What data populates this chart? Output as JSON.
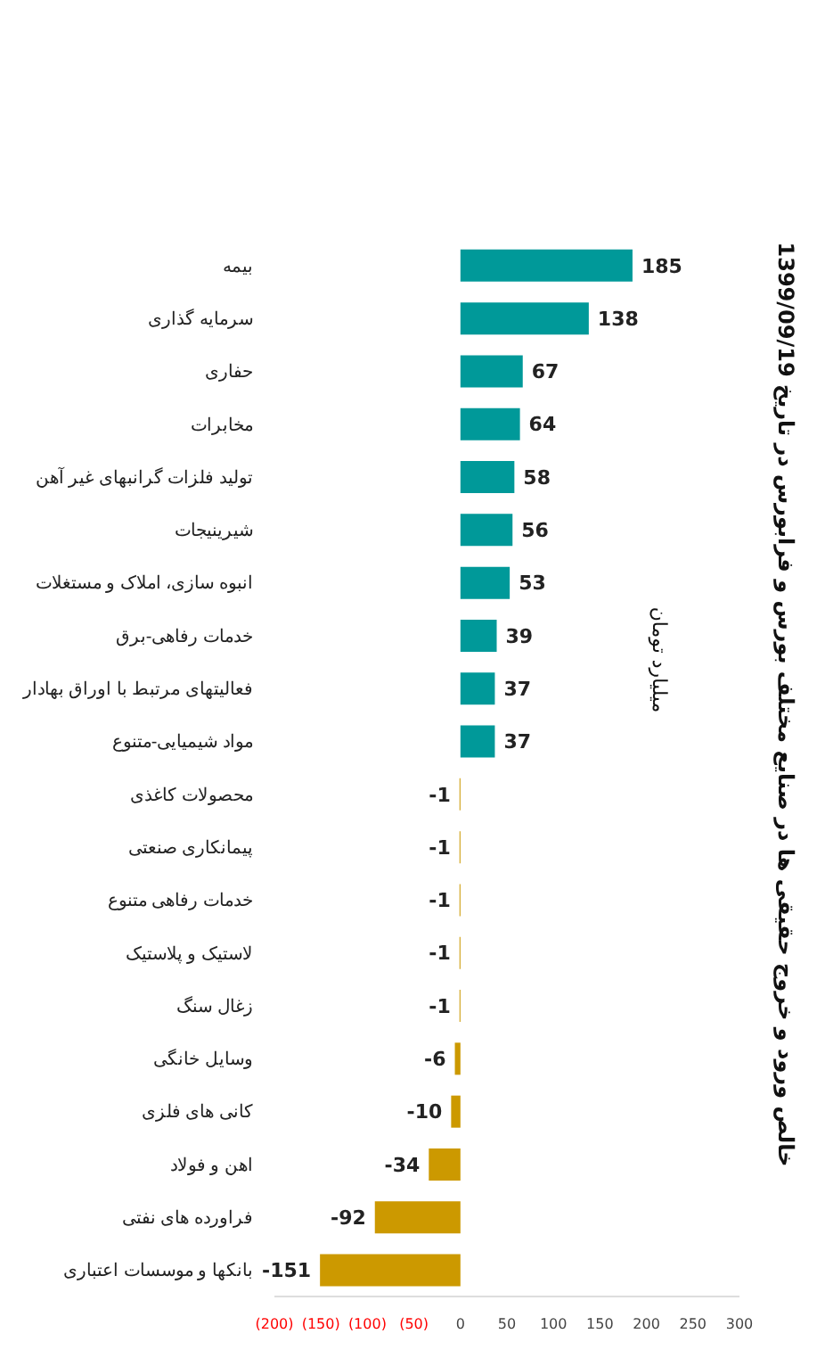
{
  "chart_data": {
    "type": "bar",
    "orientation": "horizontal",
    "title": "خالص ورود و خروج حقیقی ها در صنایع مختلف بورس و فرابورس در تاریخ 1399/09/19",
    "ylabel": "میلیارد تومان",
    "categories": [
      "بیمه",
      "سرمایه گذاری",
      "حفاری",
      "مخابرات",
      "تولید فلزات گرانبهای غیر آهن",
      "شیرینیجات",
      "انبوه سازی، املاک و مستغلات",
      "خدمات رفاهی-برق",
      "فعالیتهای مرتبط با اوراق بهادار",
      "مواد شیمیایی-متنوع",
      "محصولات کاغذی",
      "پیمانکاری صنعتی",
      "خدمات رفاهی متنوع",
      "لاستیک و پلاستیک",
      "زغال سنگ",
      "وسایل خانگی",
      "کانی های فلزی",
      "اهن و فولاد",
      "فراورده های نفتی",
      "بانکها و موسسات اعتباری"
    ],
    "values": [
      185,
      138,
      67,
      64,
      58,
      56,
      53,
      39,
      37,
      37,
      -1,
      -1,
      -1,
      -1,
      -1,
      -6,
      -10,
      -34,
      -92,
      -151
    ],
    "colors": [
      "#009999",
      "#009999",
      "#009999",
      "#009999",
      "#009999",
      "#009999",
      "#009999",
      "#009999",
      "#009999",
      "#009999",
      "#cc9900",
      "#cc9900",
      "#cc9900",
      "#cc9900",
      "#cc9900",
      "#cc9900",
      "#cc9900",
      "#cc9900",
      "#cc9900",
      "#cc9900"
    ],
    "xlim": [
      -200,
      300
    ],
    "xticks": [
      {
        "value": -200,
        "label": "(200)"
      },
      {
        "value": -150,
        "label": "(150)"
      },
      {
        "value": -100,
        "label": "(100)"
      },
      {
        "value": -50,
        "label": "(50)"
      },
      0,
      50,
      100,
      150,
      200,
      250,
      300
    ],
    "data_labels": true,
    "grid": false
  }
}
